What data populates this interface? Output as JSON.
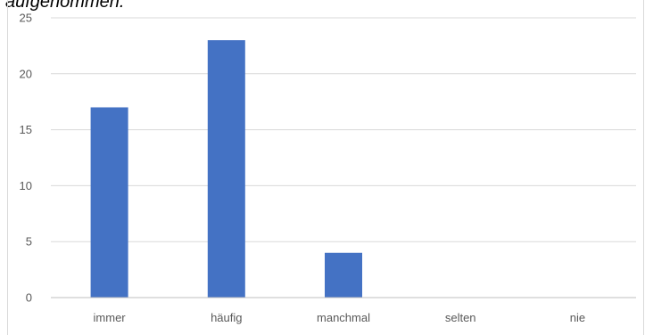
{
  "caption_fragment": "aufgenommen.",
  "chart_data": {
    "type": "bar",
    "categories": [
      "immer",
      "häufig",
      "manchmal",
      "selten",
      "nie"
    ],
    "values": [
      17,
      23,
      4,
      0,
      0
    ],
    "title": "",
    "xlabel": "",
    "ylabel": "",
    "ylim": [
      0,
      25
    ],
    "yticks": [
      0,
      5,
      10,
      15,
      20,
      25
    ],
    "grid": true,
    "legend": "none",
    "bar_color": "#4472c4",
    "grid_color": "#d9d9d9",
    "axis_color": "#bfbfbf"
  }
}
